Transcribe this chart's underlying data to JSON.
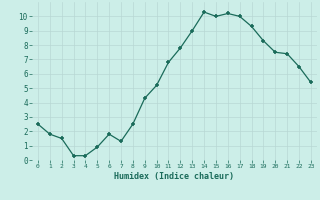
{
  "x": [
    0,
    1,
    2,
    3,
    4,
    5,
    6,
    7,
    8,
    9,
    10,
    11,
    12,
    13,
    14,
    15,
    16,
    17,
    18,
    19,
    20,
    21,
    22,
    23
  ],
  "y": [
    2.5,
    1.8,
    1.5,
    0.3,
    0.3,
    0.9,
    1.8,
    1.3,
    2.5,
    4.3,
    5.2,
    6.8,
    7.8,
    9.0,
    10.3,
    10.0,
    10.2,
    10.0,
    9.3,
    8.3,
    7.5,
    7.4,
    6.5,
    5.4
  ],
  "xlabel": "Humidex (Indice chaleur)",
  "xlim": [
    -0.5,
    23.5
  ],
  "ylim": [
    0,
    11
  ],
  "yticks": [
    0,
    1,
    2,
    3,
    4,
    5,
    6,
    7,
    8,
    9,
    10
  ],
  "xticks": [
    0,
    1,
    2,
    3,
    4,
    5,
    6,
    7,
    8,
    9,
    10,
    11,
    12,
    13,
    14,
    15,
    16,
    17,
    18,
    19,
    20,
    21,
    22,
    23
  ],
  "line_color": "#1a6b5a",
  "marker": "+",
  "marker_size": 3.0,
  "background_color": "#cceee8",
  "grid_color": "#b8d8d4",
  "xlabel_color": "#1a6b5a",
  "tick_color": "#1a6b5a"
}
